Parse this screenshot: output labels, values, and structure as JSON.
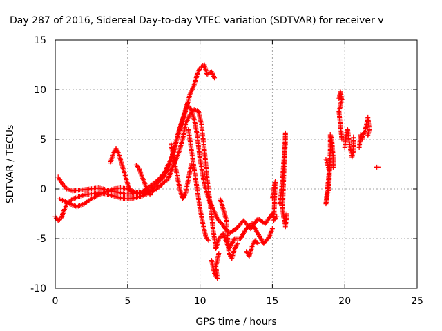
{
  "chart_data": {
    "type": "scatter",
    "title": "Day 287 of 2016, Sidereal Day-to-day VTEC variation (SDTVAR) for receiver v",
    "xlabel": "GPS time / hours",
    "ylabel": "SDTVAR / TECUs",
    "xlim": [
      0,
      25
    ],
    "ylim": [
      -10,
      15
    ],
    "xticks": [
      0,
      5,
      10,
      15,
      20,
      25
    ],
    "yticks": [
      -10,
      -5,
      0,
      5,
      10,
      15
    ],
    "grid": true,
    "marker": "+",
    "color": "#ff0000",
    "series": [
      {
        "name": "SDTVAR",
        "tracks": [
          [
            [
              0.0,
              -2.8
            ],
            [
              0.2,
              -3.2
            ],
            [
              0.4,
              -3.0
            ],
            [
              0.6,
              -2.2
            ],
            [
              0.8,
              -1.5
            ],
            [
              1.2,
              -1.0
            ],
            [
              1.6,
              -0.8
            ],
            [
              2.0,
              -0.6
            ],
            [
              2.5,
              -0.5
            ],
            [
              3.0,
              -0.4
            ],
            [
              3.5,
              -0.5
            ],
            [
              4.0,
              -0.7
            ],
            [
              4.5,
              -0.9
            ],
            [
              5.0,
              -1.0
            ],
            [
              5.5,
              -0.9
            ],
            [
              6.0,
              -0.7
            ],
            [
              6.5,
              -0.4
            ],
            [
              7.0,
              0.0
            ],
            [
              7.4,
              0.5
            ],
            [
              7.8,
              1.0
            ],
            [
              8.2,
              2.5
            ],
            [
              8.5,
              3.5
            ],
            [
              8.8,
              5.0
            ],
            [
              9.0,
              6.5
            ],
            [
              9.3,
              7.5
            ],
            [
              9.6,
              8.0
            ],
            [
              9.9,
              7.8
            ],
            [
              10.1,
              6.5
            ],
            [
              10.3,
              4.0
            ],
            [
              10.5,
              1.0
            ],
            [
              10.7,
              -1.5
            ],
            [
              10.9,
              -4.0
            ],
            [
              11.1,
              -6.0
            ],
            [
              11.3,
              -5.0
            ],
            [
              11.6,
              -4.5
            ],
            [
              12.0,
              -6.0
            ],
            [
              12.4,
              -5.0
            ],
            [
              12.8,
              -5.0
            ],
            [
              13.2,
              -4.0
            ],
            [
              13.6,
              -3.5
            ],
            [
              14.0,
              -4.5
            ],
            [
              14.4,
              -5.5
            ],
            [
              14.8,
              -4.8
            ],
            [
              15.0,
              -4.0
            ]
          ],
          [
            [
              0.2,
              1.2
            ],
            [
              0.5,
              0.5
            ],
            [
              0.8,
              0.0
            ],
            [
              1.2,
              -0.2
            ],
            [
              1.8,
              -0.1
            ],
            [
              2.4,
              0.0
            ],
            [
              3.0,
              0.1
            ],
            [
              3.6,
              -0.1
            ],
            [
              4.2,
              -0.3
            ],
            [
              4.8,
              -0.5
            ],
            [
              5.4,
              -0.5
            ],
            [
              6.0,
              -0.3
            ],
            [
              6.5,
              0.2
            ],
            [
              7.0,
              0.8
            ],
            [
              7.5,
              1.5
            ],
            [
              8.0,
              3.0
            ],
            [
              8.4,
              5.0
            ],
            [
              8.8,
              7.0
            ],
            [
              9.1,
              8.5
            ],
            [
              9.4,
              8.0
            ],
            [
              9.6,
              7.0
            ],
            [
              9.8,
              5.5
            ],
            [
              10.0,
              3.0
            ],
            [
              10.3,
              0.5
            ],
            [
              10.6,
              -1.0
            ],
            [
              10.9,
              -2.0
            ],
            [
              11.2,
              -3.0
            ],
            [
              11.5,
              -3.5
            ],
            [
              12.0,
              -4.5
            ],
            [
              12.5,
              -4.0
            ],
            [
              13.0,
              -3.2
            ],
            [
              13.5,
              -4.0
            ],
            [
              14.0,
              -3.0
            ],
            [
              14.5,
              -3.5
            ],
            [
              15.0,
              -2.5
            ]
          ],
          [
            [
              0.3,
              -1.0
            ],
            [
              0.6,
              -1.2
            ],
            [
              1.0,
              -1.5
            ],
            [
              1.5,
              -1.8
            ],
            [
              2.0,
              -1.5
            ],
            [
              2.5,
              -1.0
            ],
            [
              3.0,
              -0.6
            ],
            [
              3.5,
              -0.3
            ],
            [
              4.0,
              0.0
            ],
            [
              4.5,
              0.1
            ],
            [
              5.0,
              0.0
            ],
            [
              5.5,
              -0.3
            ],
            [
              6.0,
              -0.5
            ],
            [
              6.5,
              -0.3
            ],
            [
              7.0,
              0.5
            ],
            [
              7.5,
              1.2
            ],
            [
              7.8,
              2.0
            ],
            [
              8.2,
              3.8
            ],
            [
              8.6,
              6.2
            ],
            [
              9.0,
              7.8
            ],
            [
              9.3,
              9.5
            ],
            [
              9.6,
              10.5
            ],
            [
              9.8,
              11.5
            ],
            [
              10.0,
              12.2
            ],
            [
              10.3,
              12.5
            ],
            [
              10.5,
              11.5
            ],
            [
              10.8,
              11.8
            ],
            [
              11.0,
              11.2
            ]
          ],
          [
            [
              3.8,
              2.6
            ],
            [
              4.0,
              3.5
            ],
            [
              4.2,
              4.1
            ],
            [
              4.4,
              3.5
            ],
            [
              4.6,
              2.5
            ],
            [
              4.8,
              1.5
            ],
            [
              5.0,
              0.5
            ],
            [
              5.2,
              -0.2
            ],
            [
              5.4,
              -0.5
            ]
          ],
          [
            [
              5.6,
              2.4
            ],
            [
              5.8,
              2.0
            ],
            [
              6.0,
              1.2
            ],
            [
              6.2,
              0.5
            ],
            [
              6.4,
              -0.3
            ],
            [
              6.6,
              -0.6
            ]
          ],
          [
            [
              8.0,
              4.5
            ],
            [
              8.2,
              3.0
            ],
            [
              8.4,
              1.5
            ],
            [
              8.6,
              0.0
            ],
            [
              8.8,
              -1.0
            ],
            [
              9.0,
              -0.5
            ],
            [
              9.2,
              1.0
            ],
            [
              9.4,
              2.5
            ]
          ],
          [
            [
              9.2,
              6.0
            ],
            [
              9.4,
              4.0
            ],
            [
              9.6,
              2.0
            ],
            [
              9.8,
              0.0
            ],
            [
              10.0,
              -2.0
            ],
            [
              10.2,
              -3.5
            ],
            [
              10.4,
              -4.8
            ],
            [
              10.6,
              -5.2
            ]
          ],
          [
            [
              10.8,
              -7.2
            ],
            [
              11.0,
              -8.5
            ],
            [
              11.2,
              -9.0
            ],
            [
              11.1,
              -7.8
            ],
            [
              11.3,
              -6.5
            ]
          ],
          [
            [
              11.4,
              -1.0
            ],
            [
              11.6,
              -2.0
            ],
            [
              11.8,
              -3.0
            ],
            [
              12.0,
              -6.5
            ],
            [
              12.2,
              -7.0
            ],
            [
              12.4,
              -6.0
            ],
            [
              12.6,
              -5.5
            ]
          ],
          [
            [
              13.2,
              -6.3
            ],
            [
              13.4,
              -6.8
            ],
            [
              13.6,
              -5.8
            ],
            [
              13.8,
              -5.2
            ],
            [
              14.0,
              -5.5
            ]
          ],
          [
            [
              15.0,
              -1.0
            ],
            [
              15.1,
              0.0
            ],
            [
              15.2,
              0.8
            ],
            [
              15.1,
              -3.2
            ],
            [
              15.3,
              -2.8
            ]
          ],
          [
            [
              15.5,
              -1.5
            ],
            [
              15.6,
              -0.5
            ],
            [
              15.7,
              1.0
            ],
            [
              15.8,
              3.0
            ],
            [
              15.9,
              4.5
            ],
            [
              15.9,
              5.6
            ],
            [
              15.7,
              -2.0
            ],
            [
              15.8,
              -3.0
            ],
            [
              15.9,
              -3.8
            ],
            [
              16.0,
              -2.5
            ]
          ],
          [
            [
              18.7,
              3.0
            ],
            [
              18.8,
              2.5
            ],
            [
              18.9,
              2.0
            ],
            [
              19.0,
              2.8
            ],
            [
              18.7,
              -1.5
            ],
            [
              18.8,
              -0.5
            ],
            [
              18.9,
              0.0
            ],
            [
              19.0,
              4.0
            ],
            [
              19.0,
              5.5
            ],
            [
              19.1,
              5.0
            ],
            [
              19.2,
              3.2
            ],
            [
              19.2,
              2.2
            ]
          ],
          [
            [
              19.6,
              9.1
            ],
            [
              19.7,
              9.8
            ],
            [
              19.8,
              9.0
            ],
            [
              19.6,
              7.8
            ],
            [
              19.8,
              5.0
            ]
          ],
          [
            [
              20.0,
              4.2
            ],
            [
              20.1,
              5.5
            ],
            [
              20.2,
              6.0
            ],
            [
              20.3,
              4.8
            ],
            [
              20.4,
              4.0
            ],
            [
              20.5,
              3.2
            ],
            [
              20.6,
              3.8
            ],
            [
              20.6,
              5.2
            ]
          ],
          [
            [
              21.0,
              4.2
            ],
            [
              21.1,
              5.5
            ],
            [
              21.2,
              5.0
            ],
            [
              21.3,
              5.6
            ],
            [
              21.4,
              5.8
            ],
            [
              21.5,
              6.5
            ],
            [
              21.6,
              7.2
            ],
            [
              21.7,
              6.0
            ],
            [
              21.6,
              5.4
            ]
          ],
          [
            [
              22.2,
              2.2
            ],
            [
              22.3,
              2.2
            ]
          ]
        ]
      }
    ]
  }
}
